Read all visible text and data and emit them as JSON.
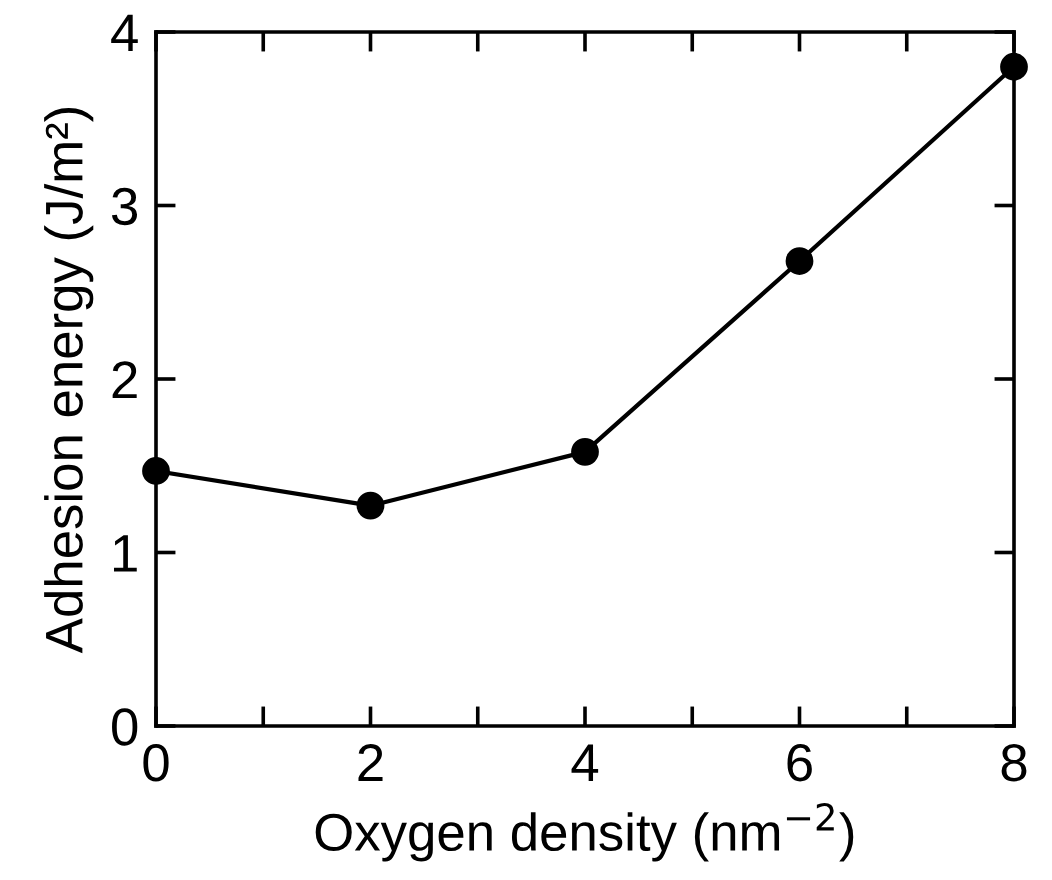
{
  "chart_data": {
    "type": "line",
    "xlabel": "Oxygen density (nm$^{−2}$)",
    "ylabel": "Adhesion energy (J/m²)",
    "x": [
      0,
      2,
      4,
      6,
      8
    ],
    "series": [
      {
        "color": "#000000",
        "values": [
          1.47,
          1.27,
          1.58,
          2.68,
          3.8
        ]
      }
    ],
    "xlim": [
      0,
      8
    ],
    "ylim": [
      0,
      4
    ],
    "xticks": [
      0,
      {
        "value": 1,
        "label": null
      },
      2,
      {
        "value": 3,
        "label": null
      },
      4,
      {
        "value": 5,
        "label": null
      },
      6,
      {
        "value": 7,
        "label": null
      },
      8
    ],
    "yticks": [
      0,
      1,
      2,
      3,
      4
    ],
    "marker": "circle",
    "line_style": "solid",
    "grid": false,
    "legend": false
  }
}
